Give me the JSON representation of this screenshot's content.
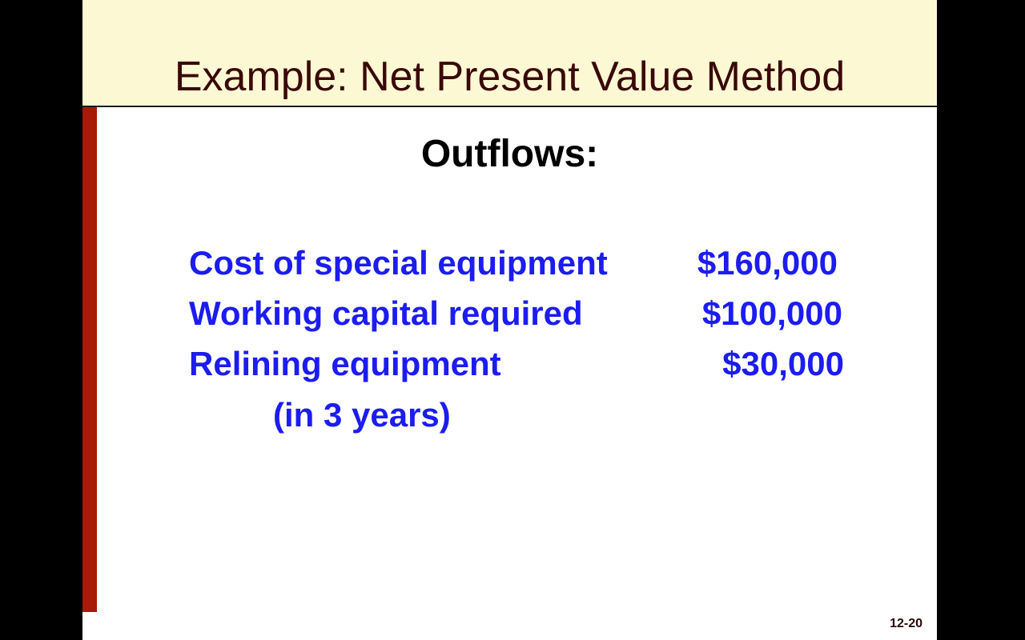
{
  "slide": {
    "title": "Example: Net Present Value Method",
    "subtitle": "Outflows:",
    "items": [
      {
        "label": "Cost of special equipment",
        "amount": "$160,000"
      },
      {
        "label": "Working capital required",
        "amount": "$100,000"
      },
      {
        "label": "Relining equipment",
        "amount": "$30,000",
        "note": "(in 3 years)"
      }
    ],
    "page_number": "12-20"
  },
  "colors": {
    "header_bg": "#fcf8d4",
    "accent_bar": "#a81a08",
    "title": "#3a0808",
    "body_text": "#1c1cf0"
  }
}
